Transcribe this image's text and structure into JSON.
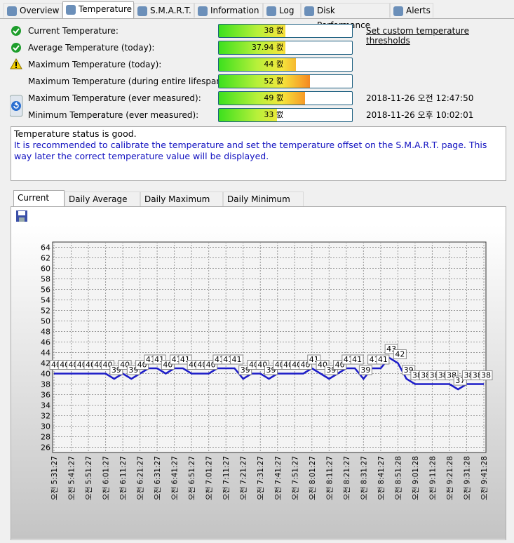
{
  "tabs": [
    "Overview",
    "Temperature",
    "S.M.A.R.T.",
    "Information",
    "Log",
    "Disk Performance",
    "Alerts"
  ],
  "rows": [
    {
      "label": "Current Temperature:",
      "value": 38,
      "value_label": "38 캜",
      "icon": "ok"
    },
    {
      "label": "Average Temperature (today):",
      "value": 37.94,
      "value_label": "37.94 캜",
      "icon": "ok"
    },
    {
      "label": "Maximum Temperature (today):",
      "value": 44,
      "value_label": "44 캜",
      "icon": "warn"
    },
    {
      "label": "Maximum Temperature (during entire lifespan):",
      "value": 52,
      "value_label": "52 캜"
    },
    {
      "label": "Maximum Temperature (ever measured):",
      "value": 49,
      "value_label": "49 캜",
      "date": "2018-11-26 오전 12:47:50",
      "icon": "reset"
    },
    {
      "label": "Minimum Temperature (ever measured):",
      "value": 33,
      "value_label": "33 캜",
      "date": "2018-11-26 오후 10:02:01"
    }
  ],
  "link": "Set custom temperature thresholds",
  "status": {
    "line1": "Temperature status is good.",
    "line2": "It is recommended to calibrate the temperature and set the temperature offset on the S.M.A.R.T. page. This way later the correct temperature value will be displayed."
  },
  "chart_tabs": [
    "Current (캜)",
    "Daily Average (캜)",
    "Daily Maximum (캜)",
    "Daily Minimum (캜)"
  ],
  "chart_data": {
    "type": "line",
    "color": "#1c1cc8",
    "grid": true,
    "categories": [
      "오전 5:31:27",
      null,
      "오전 5:41:27",
      null,
      "오전 5:51:27",
      null,
      "오전 6:01:27",
      null,
      "오전 6:11:27",
      null,
      "오전 6:21:27",
      null,
      "오전 6:31:27",
      null,
      "오전 6:41:27",
      null,
      "오전 6:51:27",
      null,
      "오전 7:01:27",
      null,
      "오전 7:11:27",
      null,
      "오전 7:21:27",
      null,
      "오전 7:31:27",
      null,
      "오전 7:41:27",
      null,
      "오전 7:51:27",
      null,
      "오전 8:01:27",
      null,
      "오전 8:11:27",
      null,
      "오전 8:21:27",
      null,
      "오전 8:31:27",
      null,
      "오전 8:41:27",
      null,
      "오전 8:51:28",
      null,
      "오전 9:01:28",
      null,
      "오전 9:11:28",
      null,
      "오전 9:21:28",
      null,
      "오전 9:31:28",
      null,
      "오전 9:41:28"
    ],
    "values": [
      40,
      40,
      40,
      40,
      40,
      40,
      40,
      39,
      40,
      39,
      40,
      41,
      41,
      40,
      41,
      41,
      40,
      40,
      40,
      41,
      41,
      41,
      39,
      40,
      40,
      39,
      40,
      40,
      40,
      40,
      41,
      40,
      39,
      40,
      41,
      41,
      39,
      41,
      41,
      43,
      42,
      39,
      38,
      38,
      38,
      38,
      38,
      37,
      38,
      38,
      38
    ],
    "ylim": [
      25,
      65
    ],
    "yticks": [
      26,
      28,
      30,
      32,
      34,
      36,
      38,
      40,
      42,
      44,
      46,
      48,
      50,
      52,
      54,
      56,
      58,
      60,
      62,
      64
    ]
  }
}
